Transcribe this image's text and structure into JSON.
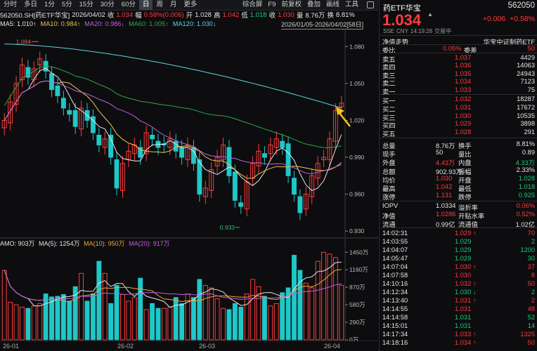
{
  "toolbar": {
    "tabs": [
      "分时",
      "多日",
      "1分",
      "5分",
      "15分",
      "30分",
      "60分",
      "日",
      "周",
      "月",
      "更多"
    ],
    "active_tab": "日",
    "tools": [
      "综合屏",
      "F9",
      "前复权",
      "叠加",
      "画线",
      "工具"
    ]
  },
  "info": {
    "code_name": "562050.SH[药ETF华宝]",
    "date": "2026/04/02",
    "close_label": "收",
    "close": "1.034",
    "pct_label": "幅",
    "pct": "0.58%(0.006)",
    "open_label": "开",
    "open": "1.028",
    "high_label": "高",
    "high": "1.042",
    "low_label": "低",
    "low": "1.018",
    "prev_label": "收",
    "prev": "1.030",
    "vol_label": "量",
    "vol": "8.76万",
    "turn_label": "换",
    "turn": "8.81%",
    "range": "2026/01/05-2026/04/02[58日]"
  },
  "ma": [
    {
      "label": "MA5: 1.010↑",
      "color": "#e6e6e6"
    },
    {
      "label": "MA10: 0.984↑",
      "color": "#e8c94f"
    },
    {
      "label": "MA20: 0.986↓",
      "color": "#c25fe0"
    },
    {
      "label": "MA60: 1.005↑",
      "color": "#2ea84a"
    },
    {
      "label": "MA120: 1.030↓",
      "color": "#5fd3e0"
    }
  ],
  "amo": {
    "label": "AMO: 903万",
    "ma5": "MA(5): 1254万",
    "ma10": "MA(10): 950万",
    "ma20": "MA(20): 917万"
  },
  "price_axis": [
    "1.080",
    "1.050",
    "1.020",
    "0.990",
    "0.960",
    "0.930"
  ],
  "vol_axis": [
    "1450万",
    "1160万",
    "870万",
    "580万",
    "290万",
    "0万"
  ],
  "dates": [
    "26-01",
    "26-02",
    "26-03",
    "26-04"
  ],
  "markers": {
    "high": "1.084",
    "low": "0.933"
  },
  "chart_data": {
    "type": "candlestick",
    "ylim": [
      0.925,
      1.095
    ],
    "closes": [
      1.02,
      1.035,
      1.05,
      1.065,
      1.055,
      1.062,
      1.07,
      1.06,
      1.045,
      1.04,
      1.03,
      1.025,
      1.015,
      1.03,
      1.02,
      1.01,
      1.0,
      1.005,
      0.99,
      0.965,
      0.985,
      0.995,
      1.0,
      0.99,
      1.01,
      1.005,
      0.998,
      1.0,
      1.005,
      0.995,
      0.99,
      1.0,
      0.985,
      0.96,
      0.965,
      0.98,
      0.99,
      1.0,
      0.975,
      0.955,
      0.95,
      0.97,
      0.985,
      0.995,
      0.99,
      1.0,
      1.005,
      0.998,
      0.975,
      0.96,
      0.945,
      0.96,
      0.975,
      0.985,
      0.99,
      1.005,
      1.028,
      1.034
    ],
    "volume_wan": [
      1150,
      620,
      580,
      540,
      520,
      560,
      600,
      760,
      710,
      720,
      750,
      640,
      880,
      1100,
      640,
      760,
      1300,
      1100,
      600,
      900,
      750,
      640,
      700,
      1020,
      500,
      600,
      520,
      520,
      540,
      700,
      600,
      760,
      700,
      1000,
      900,
      860,
      680,
      520,
      500,
      600,
      540,
      760,
      1000,
      880,
      720,
      560,
      600,
      780,
      860,
      1400,
      1150,
      940,
      860,
      1300,
      1450,
      1420,
      1360,
      903
    ]
  },
  "quote": {
    "name": "药ETF华宝",
    "code": "562050",
    "price": "1.034",
    "change": "+0.006",
    "change_pct": "+0.58%",
    "sub": [
      "SSE",
      "CNY",
      "14:19:28",
      "交易中"
    ],
    "title_left": "净值走势",
    "title_right": "华宝中证制药ETF",
    "ratio_label": "委比",
    "ratio": "0.05%",
    "diff_label": "委差",
    "diff": "50",
    "asks": [
      {
        "label": "卖五",
        "price": "1.037",
        "vol": "4429"
      },
      {
        "label": "卖四",
        "price": "1.036",
        "vol": "14063"
      },
      {
        "label": "卖三",
        "price": "1.035",
        "vol": "24943"
      },
      {
        "label": "卖二",
        "price": "1.034",
        "vol": "7123"
      },
      {
        "label": "卖一",
        "price": "1.033",
        "vol": "75"
      }
    ],
    "bids": [
      {
        "label": "买一",
        "price": "1.032",
        "vol": "18287"
      },
      {
        "label": "买二",
        "price": "1.031",
        "vol": "17672"
      },
      {
        "label": "买三",
        "price": "1.030",
        "vol": "10535"
      },
      {
        "label": "买四",
        "price": "1.029",
        "vol": "3898"
      },
      {
        "label": "买五",
        "price": "1.028",
        "vol": "291"
      }
    ],
    "stats": [
      {
        "l1": "总量",
        "v1": "8.76万",
        "c1": "#e6e6e6",
        "l2": "换手",
        "v2": "8.81%",
        "c2": "#e6e6e6"
      },
      {
        "l1": "现手",
        "v1": "50",
        "c1": "#e6e6e6",
        "l2": "量比",
        "v2": "0.89",
        "c2": "#e6e6e6"
      },
      {
        "l1": "外盘",
        "v1": "4.43万",
        "c1": "#ff3b3b",
        "l2": "内盘",
        "v2": "4.33万",
        "c2": "#1fc77a"
      },
      {
        "l1": "总额",
        "v1": "902.93万",
        "c1": "#e6e6e6",
        "l2": "振幅",
        "v2": "2.33%",
        "c2": "#e6e6e6"
      },
      {
        "l1": "均价",
        "v1": "1.030",
        "c1": "#ff3b3b",
        "l2": "开盘",
        "v2": "1.028",
        "c2": "#1fc77a"
      },
      {
        "l1": "最高",
        "v1": "1.042",
        "c1": "#ff3b3b",
        "l2": "最低",
        "v2": "1.018",
        "c2": "#1fc77a"
      },
      {
        "l1": "涨停",
        "v1": "1.131",
        "c1": "#ff3b3b",
        "l2": "跌停",
        "v2": "0.925",
        "c2": "#1fc77a"
      }
    ],
    "stats2": [
      {
        "l1": "IOPV",
        "v1": "1.0334",
        "c1": "#e6e6e6",
        "l2": "溢折率",
        "v2": "0.06%",
        "c2": "#ff3b3b"
      },
      {
        "l1": "净值",
        "v1": "1.0286",
        "c1": "#ff3b3b",
        "l2": "开贴水率",
        "v2": "0.52%",
        "c2": "#ff3b3b"
      },
      {
        "l1": "流通",
        "v1": "0.99亿",
        "c1": "#e6e6e6",
        "l2": "流通值",
        "v2": "1.02亿",
        "c2": "#e6e6e6"
      }
    ],
    "ticks": [
      {
        "t": "14:02:31",
        "p": "1.029",
        "d": "↑",
        "v": "70",
        "c": "#ff3b3b"
      },
      {
        "t": "14:03:55",
        "p": "1.029",
        "d": "",
        "v": "2",
        "c": "#1fc77a"
      },
      {
        "t": "14:04:07",
        "p": "1.029",
        "d": "",
        "v": "1200",
        "c": "#1fc77a"
      },
      {
        "t": "14:05:47",
        "p": "1.029",
        "d": "",
        "v": "30",
        "c": "#1fc77a"
      },
      {
        "t": "14:07:04",
        "p": "1.030",
        "d": "↑",
        "v": "37",
        "c": "#ff3b3b"
      },
      {
        "t": "14:07:58",
        "p": "1.030",
        "d": "",
        "v": "8",
        "c": "#ff3b3b"
      },
      {
        "t": "14:10:16",
        "p": "1.032",
        "d": "↑",
        "v": "50",
        "c": "#ff3b3b"
      },
      {
        "t": "14:12:34",
        "p": "1.030",
        "d": "↓",
        "v": "2",
        "c": "#1fc77a"
      },
      {
        "t": "14:13:40",
        "p": "1.031",
        "d": "↑",
        "v": "2",
        "c": "#ff3b3b"
      },
      {
        "t": "14:14:55",
        "p": "1.031",
        "d": "",
        "v": "48",
        "c": "#ff3b3b"
      },
      {
        "t": "14:14:58",
        "p": "1.031",
        "d": "",
        "v": "52",
        "c": "#1fc77a"
      },
      {
        "t": "14:15:01",
        "p": "1.031",
        "d": "",
        "v": "14",
        "c": "#1fc77a"
      },
      {
        "t": "14:17:34",
        "p": "1.033",
        "d": "↑",
        "v": "1325",
        "c": "#ff3b3b"
      },
      {
        "t": "14:18:16",
        "p": "1.034",
        "d": "↑",
        "v": "50",
        "c": "#ff3b3b"
      }
    ]
  }
}
